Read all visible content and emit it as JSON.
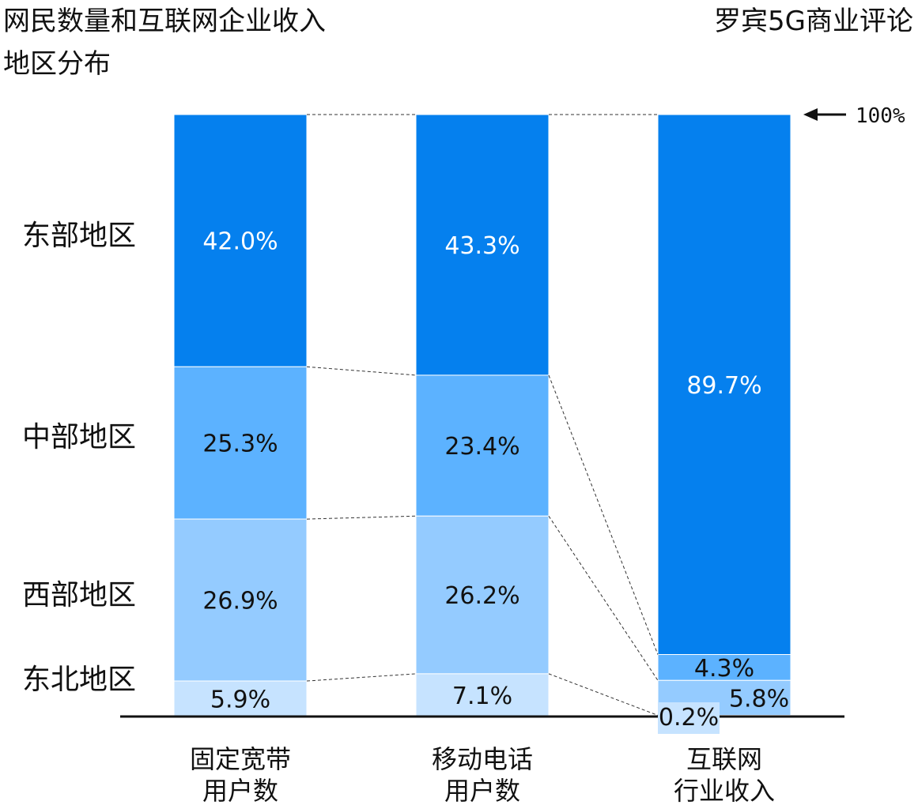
{
  "chart_data": {
    "type": "stacked-bar",
    "title_lines": [
      "网民数量和互联网企业收入",
      "地区分布"
    ],
    "source": "罗宾5G商业评论",
    "reference_label": "100%",
    "categories": [
      [
        "固定宽带",
        "用户数"
      ],
      [
        "移动电话",
        "用户数"
      ],
      [
        "互联网",
        "行业收入"
      ]
    ],
    "region_labels": [
      "东部地区",
      "中部地区",
      "西部地区",
      "东北地区"
    ],
    "series": [
      {
        "name": "东部地区",
        "color": "#0580ee",
        "label_color": "#ffffff",
        "values": [
          42.0,
          43.3,
          89.7
        ],
        "labels": [
          "42.0%",
          "43.3%",
          "89.7%"
        ]
      },
      {
        "name": "中部地区",
        "color": "#5cb2ff",
        "label_color": "#111111",
        "values": [
          25.3,
          23.4,
          4.3
        ],
        "labels": [
          "25.3%",
          "23.4%",
          "4.3%"
        ]
      },
      {
        "name": "西部地区",
        "color": "#94cbff",
        "label_color": "#111111",
        "values": [
          26.9,
          26.2,
          5.8
        ],
        "labels": [
          "26.9%",
          "26.2%",
          "5.8%"
        ]
      },
      {
        "name": "东北地区",
        "color": "#c6e3ff",
        "label_color": "#111111",
        "values": [
          5.9,
          7.1,
          0.2
        ],
        "labels": [
          "5.9%",
          "7.1%",
          "0.2%"
        ]
      }
    ],
    "ylim": [
      0,
      100
    ]
  }
}
